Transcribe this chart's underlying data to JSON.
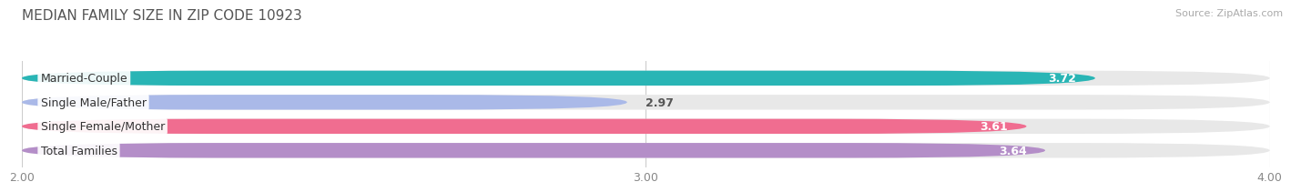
{
  "title": "MEDIAN FAMILY SIZE IN ZIP CODE 10923",
  "source": "Source: ZipAtlas.com",
  "categories": [
    "Married-Couple",
    "Single Male/Father",
    "Single Female/Mother",
    "Total Families"
  ],
  "values": [
    3.72,
    2.97,
    3.61,
    3.64
  ],
  "bar_colors": [
    "#29b5b5",
    "#aab9e8",
    "#f06d90",
    "#b48ec8"
  ],
  "value_text_colors": [
    "#ffffff",
    "#666666",
    "#ffffff",
    "#ffffff"
  ],
  "bar_bg_color": "#e8e8e8",
  "xmin": 2.0,
  "xmax": 4.0,
  "xticks": [
    2.0,
    3.0,
    4.0
  ],
  "xtick_labels": [
    "2.00",
    "3.00",
    "4.00"
  ],
  "title_fontsize": 11,
  "source_fontsize": 8,
  "label_fontsize": 9,
  "value_fontsize": 9,
  "bar_height": 0.62,
  "fig_bg_color": "#ffffff"
}
